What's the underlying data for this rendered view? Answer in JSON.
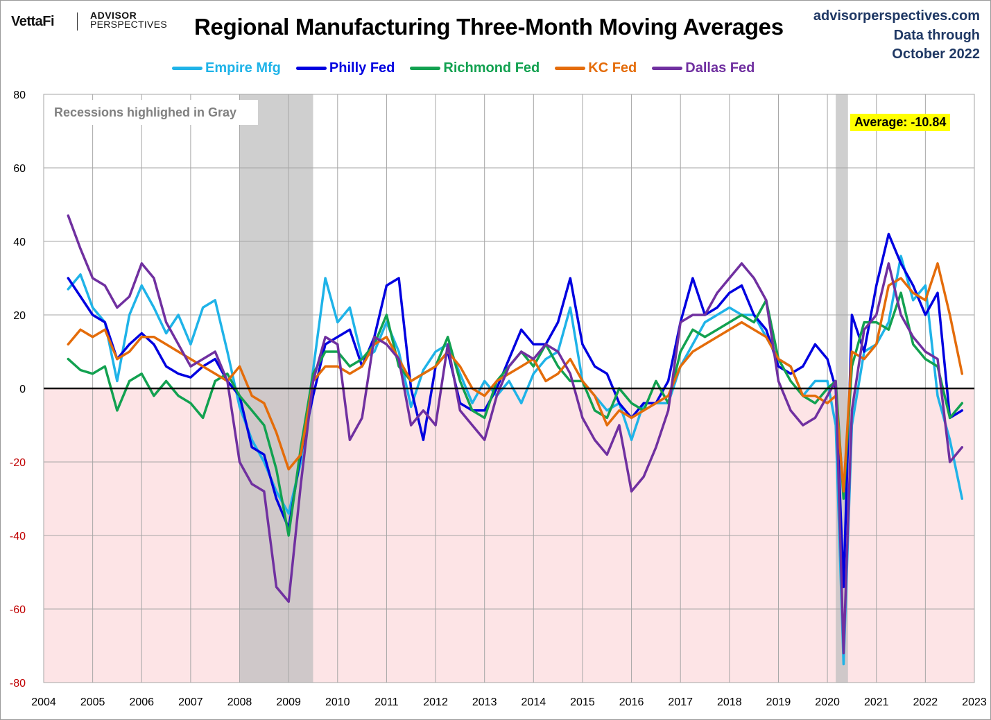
{
  "header": {
    "logo_vettafi": "VettaFi",
    "logo_advisor": "ADVISOR",
    "logo_perspectives": "PERSPECTIVES",
    "title": "Regional Manufacturing Three-Month Moving Averages",
    "site": "advisorperspectives.com",
    "data_through_line1": "Data through",
    "data_through_line2": "October 2022"
  },
  "annotations": {
    "recession_note": "Recessions highlighed in Gray",
    "average_label": "Average: -10.84"
  },
  "colors": {
    "empire": "#1fb3e8",
    "philly": "#0000e0",
    "richmond": "#12a150",
    "kc": "#e46c0a",
    "dallas": "#7030a0",
    "recession": "#bfbfbf",
    "negative_fill": "#fde4e6",
    "title_blue": "#1f3864",
    "neg_tick": "#c00000"
  },
  "chart_data": {
    "type": "line",
    "title": "Regional Manufacturing Three-Month Moving Averages",
    "xlabel": "",
    "ylabel": "",
    "xlim": [
      2004,
      2023
    ],
    "ylim": [
      -80,
      80
    ],
    "x_ticks": [
      "2004",
      "2005",
      "2006",
      "2007",
      "2008",
      "2009",
      "2010",
      "2011",
      "2012",
      "2013",
      "2014",
      "2015",
      "2016",
      "2017",
      "2018",
      "2019",
      "2020",
      "2021",
      "2022",
      "2023"
    ],
    "y_ticks": [
      "80",
      "60",
      "40",
      "20",
      "0",
      "-20",
      "-40",
      "-60",
      "-80"
    ],
    "grid": true,
    "legend_position": "top-center",
    "recessions": [
      [
        2008.0,
        2009.5
      ],
      [
        2020.17,
        2020.42
      ]
    ],
    "x": [
      2004.5,
      2004.75,
      2005.0,
      2005.25,
      2005.5,
      2005.75,
      2006.0,
      2006.25,
      2006.5,
      2006.75,
      2007.0,
      2007.25,
      2007.5,
      2007.75,
      2008.0,
      2008.25,
      2008.5,
      2008.75,
      2009.0,
      2009.25,
      2009.5,
      2009.75,
      2010.0,
      2010.25,
      2010.5,
      2010.75,
      2011.0,
      2011.25,
      2011.5,
      2011.75,
      2012.0,
      2012.25,
      2012.5,
      2012.75,
      2013.0,
      2013.25,
      2013.5,
      2013.75,
      2014.0,
      2014.25,
      2014.5,
      2014.75,
      2015.0,
      2015.25,
      2015.5,
      2015.75,
      2016.0,
      2016.25,
      2016.5,
      2016.75,
      2017.0,
      2017.25,
      2017.5,
      2017.75,
      2018.0,
      2018.25,
      2018.5,
      2018.75,
      2019.0,
      2019.25,
      2019.5,
      2019.75,
      2020.0,
      2020.17,
      2020.33,
      2020.5,
      2020.75,
      2021.0,
      2021.25,
      2021.5,
      2021.75,
      2022.0,
      2022.25,
      2022.5,
      2022.75
    ],
    "series": [
      {
        "name": "Empire Mfg",
        "color_key": "empire",
        "values": [
          27,
          31,
          22,
          18,
          2,
          20,
          28,
          22,
          15,
          20,
          12,
          22,
          24,
          10,
          -5,
          -14,
          -20,
          -28,
          -34,
          -20,
          5,
          30,
          18,
          22,
          8,
          10,
          18,
          10,
          -5,
          5,
          10,
          12,
          4,
          -4,
          2,
          -2,
          2,
          -4,
          4,
          8,
          10,
          22,
          2,
          -2,
          -6,
          -4,
          -14,
          -4,
          -4,
          -4,
          6,
          12,
          18,
          20,
          22,
          20,
          20,
          14,
          8,
          6,
          -2,
          2,
          2,
          -10,
          -75,
          -10,
          10,
          12,
          18,
          36,
          24,
          28,
          -2,
          -14,
          -30
        ]
      },
      {
        "name": "Philly Fed",
        "color_key": "philly",
        "values": [
          30,
          25,
          20,
          18,
          8,
          12,
          15,
          12,
          6,
          4,
          3,
          6,
          8,
          2,
          -2,
          -16,
          -18,
          -30,
          -38,
          -18,
          -2,
          12,
          14,
          16,
          6,
          14,
          28,
          30,
          0,
          -14,
          6,
          10,
          -4,
          -6,
          -6,
          0,
          8,
          16,
          12,
          12,
          18,
          30,
          12,
          6,
          4,
          -4,
          -8,
          -4,
          -4,
          2,
          18,
          30,
          20,
          22,
          26,
          28,
          20,
          16,
          6,
          4,
          6,
          12,
          8,
          0,
          -54,
          20,
          10,
          28,
          42,
          34,
          28,
          20,
          26,
          -8,
          -6
        ]
      },
      {
        "name": "Richmond Fed",
        "color_key": "richmond",
        "values": [
          8,
          5,
          4,
          6,
          -6,
          2,
          4,
          -2,
          2,
          -2,
          -4,
          -8,
          2,
          4,
          -2,
          -6,
          -10,
          -22,
          -40,
          -16,
          4,
          10,
          10,
          6,
          8,
          12,
          20,
          6,
          2,
          4,
          6,
          14,
          2,
          -6,
          -8,
          2,
          6,
          10,
          6,
          12,
          6,
          2,
          2,
          -6,
          -8,
          0,
          -4,
          -6,
          2,
          -4,
          10,
          16,
          14,
          16,
          18,
          20,
          18,
          24,
          8,
          2,
          -2,
          -4,
          0,
          2,
          -30,
          6,
          18,
          18,
          16,
          26,
          12,
          8,
          6,
          -8,
          -4
        ]
      },
      {
        "name": "KC Fed",
        "color_key": "kc",
        "values": [
          12,
          16,
          14,
          16,
          8,
          10,
          14,
          14,
          12,
          10,
          8,
          6,
          4,
          2,
          6,
          -2,
          -4,
          -12,
          -22,
          -18,
          2,
          6,
          6,
          4,
          6,
          12,
          14,
          8,
          2,
          4,
          6,
          10,
          6,
          0,
          -2,
          2,
          4,
          6,
          8,
          2,
          4,
          8,
          2,
          -2,
          -10,
          -6,
          -8,
          -6,
          -4,
          -2,
          6,
          10,
          12,
          14,
          16,
          18,
          16,
          14,
          8,
          6,
          -2,
          -2,
          -4,
          -2,
          -28,
          10,
          8,
          12,
          28,
          30,
          26,
          24,
          34,
          20,
          4
        ]
      },
      {
        "name": "Dallas Fed",
        "color_key": "dallas",
        "values": [
          47,
          38,
          30,
          28,
          22,
          25,
          34,
          30,
          18,
          12,
          6,
          8,
          10,
          2,
          -20,
          -26,
          -28,
          -54,
          -58,
          -26,
          2,
          14,
          12,
          -14,
          -8,
          14,
          12,
          8,
          -10,
          -6,
          -10,
          12,
          -6,
          -10,
          -14,
          -2,
          6,
          10,
          8,
          12,
          10,
          4,
          -8,
          -14,
          -18,
          -10,
          -28,
          -24,
          -16,
          -6,
          18,
          20,
          20,
          26,
          30,
          34,
          30,
          24,
          2,
          -6,
          -10,
          -8,
          -2,
          2,
          -72,
          -6,
          16,
          20,
          34,
          20,
          14,
          10,
          8,
          -20,
          -16
        ]
      }
    ]
  }
}
